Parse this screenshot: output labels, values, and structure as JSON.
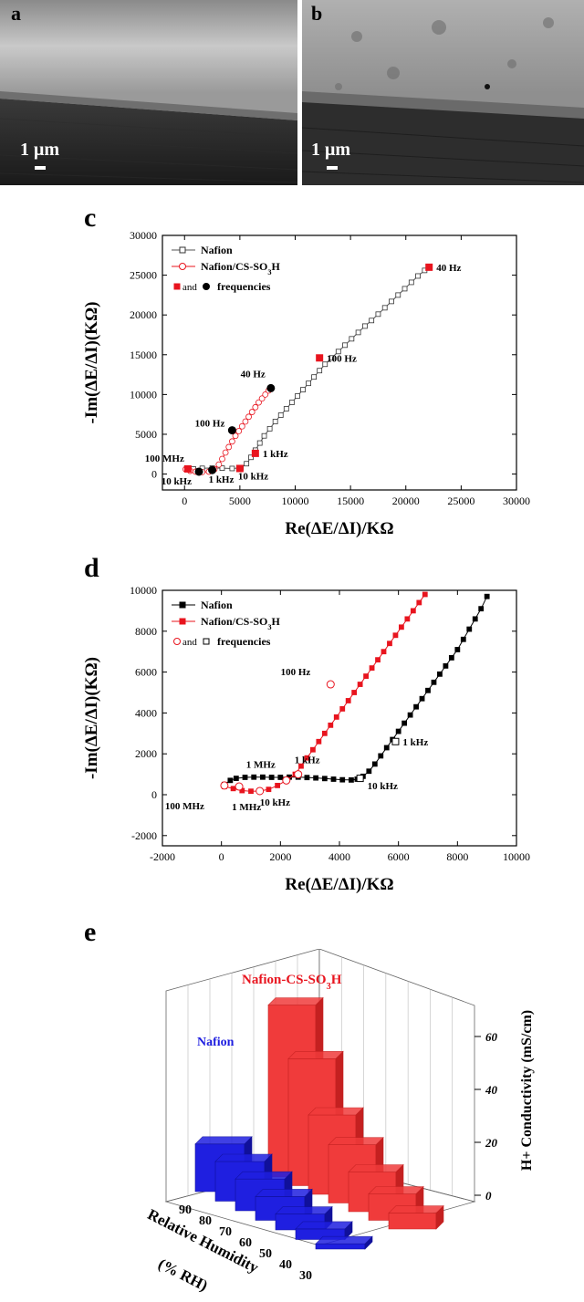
{
  "sem": {
    "a": {
      "label": "a",
      "scale": "1 μm"
    },
    "b": {
      "label": "b",
      "scale": "1 μm"
    }
  },
  "chart_data": [
    {
      "panel": "c",
      "type": "scatter",
      "xlabel": "Re(ΔE/ΔI)/KΩ",
      "ylabel": "-Im(ΔE/ΔI)(KΩ)",
      "xlim": [
        -2000,
        30000
      ],
      "ylim": [
        -2000,
        30000
      ],
      "xticks": [
        0,
        5000,
        10000,
        15000,
        20000,
        25000,
        30000
      ],
      "yticks": [
        0,
        5000,
        10000,
        15000,
        20000,
        25000,
        30000
      ],
      "legend_position": "top-left",
      "legend": {
        "s1": "Nafion",
        "s2": "Nafion/CS-SO3H",
        "and": "and",
        "freq": "frequencies"
      },
      "series": [
        {
          "name": "Nafion",
          "x": [
            200,
            800,
            1600,
            2500,
            3400,
            4300,
            5100,
            5600,
            6000,
            6400,
            6800,
            7200,
            7700,
            8200,
            8700,
            9200,
            9700,
            10200,
            10700,
            11200,
            11700,
            12200,
            12700,
            13300,
            13900,
            14500,
            15100,
            15700,
            16300,
            16900,
            17500,
            18100,
            18700,
            19300,
            19900,
            20500,
            21100,
            21700,
            22100
          ],
          "y": [
            700,
            650,
            720,
            760,
            740,
            700,
            780,
            1300,
            2100,
            3000,
            3900,
            4800,
            5700,
            6600,
            7400,
            8200,
            9000,
            9800,
            10600,
            11400,
            12200,
            13000,
            13800,
            14600,
            15400,
            16200,
            17000,
            17800,
            18600,
            19300,
            20100,
            20900,
            21700,
            22500,
            23300,
            24100,
            24900,
            25600,
            26000
          ]
        },
        {
          "name": "Nafion/CS-SO3H",
          "x": [
            100,
            500,
            1000,
            1600,
            2200,
            2700,
            3100,
            3400,
            3700,
            4000,
            4300,
            4600,
            4900,
            5200,
            5500,
            5800,
            6100,
            6400,
            6700,
            7000,
            7300,
            7600,
            7800
          ],
          "y": [
            600,
            400,
            300,
            250,
            300,
            600,
            1200,
            1900,
            2700,
            3400,
            4100,
            4800,
            5400,
            6000,
            6600,
            7200,
            7800,
            8400,
            9000,
            9500,
            10000,
            10500,
            10800
          ]
        }
      ],
      "markers": [
        {
          "x": 22100,
          "y": 26000,
          "label": "40 Hz",
          "color": "#e8141e",
          "shape": "square"
        },
        {
          "x": 12200,
          "y": 14600,
          "label": "100 Hz",
          "color": "#e8141e",
          "shape": "square"
        },
        {
          "x": 6400,
          "y": 2600,
          "label": "1 kHz",
          "color": "#e8141e",
          "shape": "square"
        },
        {
          "x": 5000,
          "y": 700,
          "label": "10 kHz",
          "color": "#e8141e",
          "shape": "square"
        },
        {
          "x": 300,
          "y": 650,
          "label": "100 MHz",
          "color": "#e8141e",
          "shape": "square"
        },
        {
          "x": 7800,
          "y": 10800,
          "label": "40 Hz",
          "color": "#000000",
          "shape": "circle"
        },
        {
          "x": 4300,
          "y": 5500,
          "label": "100 Hz",
          "color": "#000000",
          "shape": "circle"
        },
        {
          "x": 2500,
          "y": 500,
          "label": "1 kHz",
          "color": "#000000",
          "shape": "circle"
        },
        {
          "x": 1300,
          "y": 300,
          "label": "10 kHz",
          "color": "#000000",
          "shape": "circle"
        }
      ]
    },
    {
      "panel": "d",
      "type": "scatter",
      "xlabel": "Re(ΔE/ΔI)/KΩ",
      "ylabel": "-Im(ΔE/ΔI)(KΩ)",
      "xlim": [
        -2000,
        10000
      ],
      "ylim": [
        -2500,
        10000
      ],
      "xticks": [
        -2000,
        0,
        2000,
        4000,
        6000,
        8000,
        10000
      ],
      "yticks": [
        -2000,
        0,
        2000,
        4000,
        6000,
        8000,
        10000
      ],
      "legend_position": "top-left",
      "legend": {
        "s1": "Nafion",
        "s2": "Nafion/CS-SO3H",
        "and": "and",
        "freq": "frequencies"
      },
      "series": [
        {
          "name": "Nafion",
          "x": [
            100,
            300,
            500,
            800,
            1100,
            1400,
            1700,
            2000,
            2300,
            2600,
            2900,
            3200,
            3500,
            3800,
            4100,
            4400,
            4600,
            4800,
            5000,
            5200,
            5400,
            5600,
            5800,
            6000,
            6200,
            6400,
            6600,
            6800,
            7000,
            7200,
            7400,
            7600,
            7800,
            8000,
            8200,
            8400,
            8600,
            8800,
            9000
          ],
          "y": [
            500,
            700,
            800,
            850,
            860,
            860,
            850,
            850,
            860,
            860,
            840,
            820,
            790,
            760,
            730,
            720,
            760,
            900,
            1150,
            1500,
            1900,
            2300,
            2700,
            3100,
            3500,
            3900,
            4300,
            4700,
            5100,
            5500,
            5900,
            6300,
            6700,
            7100,
            7600,
            8100,
            8600,
            9100,
            9700
          ]
        },
        {
          "name": "Nafion/CS-SO3H",
          "x": [
            100,
            400,
            700,
            1000,
            1300,
            1600,
            1900,
            2200,
            2500,
            2700,
            2900,
            3100,
            3300,
            3500,
            3700,
            3900,
            4100,
            4300,
            4500,
            4700,
            4900,
            5100,
            5300,
            5500,
            5700,
            5900,
            6100,
            6300,
            6500,
            6700,
            6900
          ],
          "y": [
            400,
            300,
            200,
            170,
            180,
            260,
            450,
            700,
            1000,
            1400,
            1800,
            2200,
            2600,
            3000,
            3400,
            3800,
            4200,
            4600,
            5000,
            5400,
            5800,
            6200,
            6600,
            7000,
            7400,
            7800,
            8200,
            8600,
            9000,
            9400,
            9800
          ]
        }
      ],
      "markers": [
        {
          "x": 3700,
          "y": 5400,
          "label": "100 Hz",
          "color": "#e8141e",
          "shape": "circle"
        },
        {
          "x": 2600,
          "y": 1000,
          "label": "1 kHz",
          "color": "#e8141e",
          "shape": "circle"
        },
        {
          "x": 2200,
          "y": 700,
          "label": "1 MHz",
          "color": "#e8141e",
          "shape": "circle"
        },
        {
          "x": 1300,
          "y": 180,
          "label": "10 kHz",
          "color": "#e8141e",
          "shape": "circle"
        },
        {
          "x": 600,
          "y": 400,
          "label": "1 MHz",
          "color": "#e8141e",
          "shape": "circle"
        },
        {
          "x": 100,
          "y": 450,
          "label": "100 MHz",
          "color": "#e8141e",
          "shape": "circle"
        },
        {
          "x": 5900,
          "y": 2600,
          "label": "1 kHz",
          "color": "#000000",
          "shape": "square"
        },
        {
          "x": 4700,
          "y": 800,
          "label": "10 kHz",
          "color": "#000000",
          "shape": "square"
        }
      ]
    },
    {
      "panel": "e",
      "type": "bar",
      "title_nafion": "Nafion",
      "title_cs": "Nafion-CS-SO3H",
      "xlabel_line1": "Relative Humidity",
      "xlabel_line2": "(% RH)",
      "zlabel": "H+ Conductivity (mS/cm)",
      "categories": [
        "90",
        "80",
        "70",
        "60",
        "50",
        "40",
        "30"
      ],
      "zticks": [
        0,
        20,
        40,
        60
      ],
      "series": [
        {
          "name": "Nafion",
          "values": [
            18,
            15,
            12,
            9,
            6,
            4,
            2
          ]
        },
        {
          "name": "Nafion-CS-SO3H",
          "values": [
            65,
            48,
            30,
            22,
            15,
            10,
            6
          ]
        }
      ],
      "colors": {
        "nafion": "#1f1fe0",
        "cs": "#f03b3b"
      }
    }
  ]
}
